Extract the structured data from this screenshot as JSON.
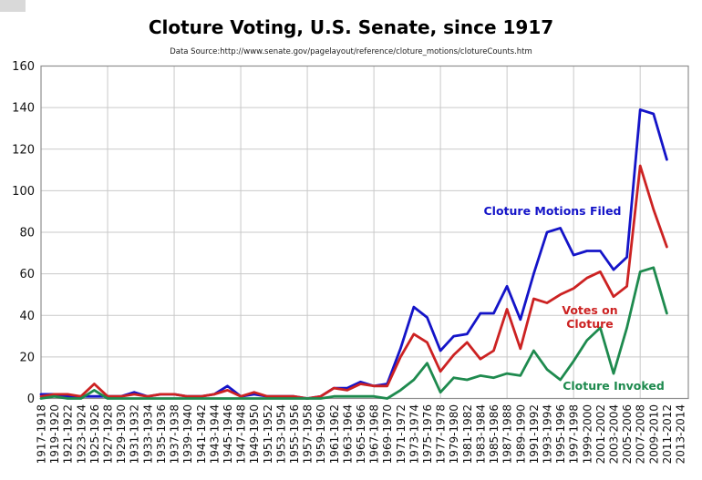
{
  "chart_data": {
    "type": "line",
    "title": "Cloture Voting, U.S. Senate, since 1917",
    "subtitle": "Data Source:http://www.senate.gov/pagelayout/reference/cloture_motions/clotureCounts.htm",
    "xlabel": "",
    "ylabel": "",
    "ylim": [
      0,
      160
    ],
    "y_ticks": [
      "0",
      "20",
      "40",
      "60",
      "80",
      "100",
      "120",
      "140",
      "160"
    ],
    "grid": "on",
    "legend_position": "inline-annotations",
    "categories": [
      "1917-1918",
      "1919-1920",
      "1921-1922",
      "1923-1924",
      "1925-1926",
      "1927-1928",
      "1929-1930",
      "1931-1932",
      "1933-1934",
      "1935-1936",
      "1937-1938",
      "1939-1940",
      "1941-1942",
      "1943-1944",
      "1945-1946",
      "1947-1948",
      "1949-1950",
      "1951-1952",
      "1953-1954",
      "1955-1956",
      "1957-1958",
      "1959-1960",
      "1961-1962",
      "1963-1964",
      "1965-1966",
      "1967-1968",
      "1969-1970",
      "1971-1972",
      "1973-1974",
      "1975-1976",
      "1977-1978",
      "1979-1980",
      "1981-1982",
      "1983-1984",
      "1985-1986",
      "1987-1988",
      "1989-1990",
      "1991-1992",
      "1993-1994",
      "1995-1996",
      "1997-1998",
      "1999-2000",
      "2001-2002",
      "2003-2004",
      "2005-2006",
      "2007-2008",
      "2009-2010",
      "2011-2012",
      "2013-2014"
    ],
    "series": [
      {
        "name": "Cloture Motions Filed",
        "color": "#1414c8",
        "values": [
          2,
          2,
          1,
          1,
          1,
          1,
          1,
          3,
          1,
          2,
          2,
          1,
          1,
          2,
          6,
          1,
          2,
          1,
          1,
          1,
          0,
          1,
          5,
          5,
          8,
          6,
          7,
          24,
          44,
          39,
          23,
          30,
          31,
          41,
          41,
          54,
          38,
          60,
          80,
          82,
          69,
          71,
          71,
          62,
          68,
          139,
          137,
          115,
          null
        ]
      },
      {
        "name": "Votes on Cloture",
        "color": "#cc2222",
        "values": [
          1,
          2,
          2,
          1,
          7,
          1,
          1,
          2,
          1,
          2,
          2,
          1,
          1,
          2,
          4,
          1,
          3,
          1,
          1,
          1,
          0,
          1,
          5,
          4,
          7,
          6,
          6,
          20,
          31,
          27,
          13,
          21,
          27,
          19,
          23,
          43,
          24,
          48,
          46,
          50,
          53,
          58,
          61,
          49,
          54,
          112,
          91,
          73,
          null
        ]
      },
      {
        "name": "Cloture Invoked",
        "color": "#1e8a4e",
        "values": [
          0,
          1,
          0,
          0,
          4,
          0,
          0,
          0,
          0,
          0,
          0,
          0,
          0,
          0,
          0,
          0,
          0,
          0,
          0,
          0,
          0,
          0,
          1,
          1,
          1,
          1,
          0,
          4,
          9,
          17,
          3,
          10,
          9,
          11,
          10,
          12,
          11,
          23,
          14,
          9,
          18,
          28,
          34,
          12,
          34,
          61,
          63,
          41,
          null
        ]
      }
    ],
    "annotations": {
      "filed_label": "Cloture Motions Filed",
      "votes_label_line1": "Votes on",
      "votes_label_line2": "Cloture",
      "invoked_label": "Cloture Invoked"
    },
    "colors": {
      "gridline": "#c9c9c9",
      "frame": "#8f8f8f",
      "tick_text": "#111111",
      "background": "#ffffff"
    }
  }
}
